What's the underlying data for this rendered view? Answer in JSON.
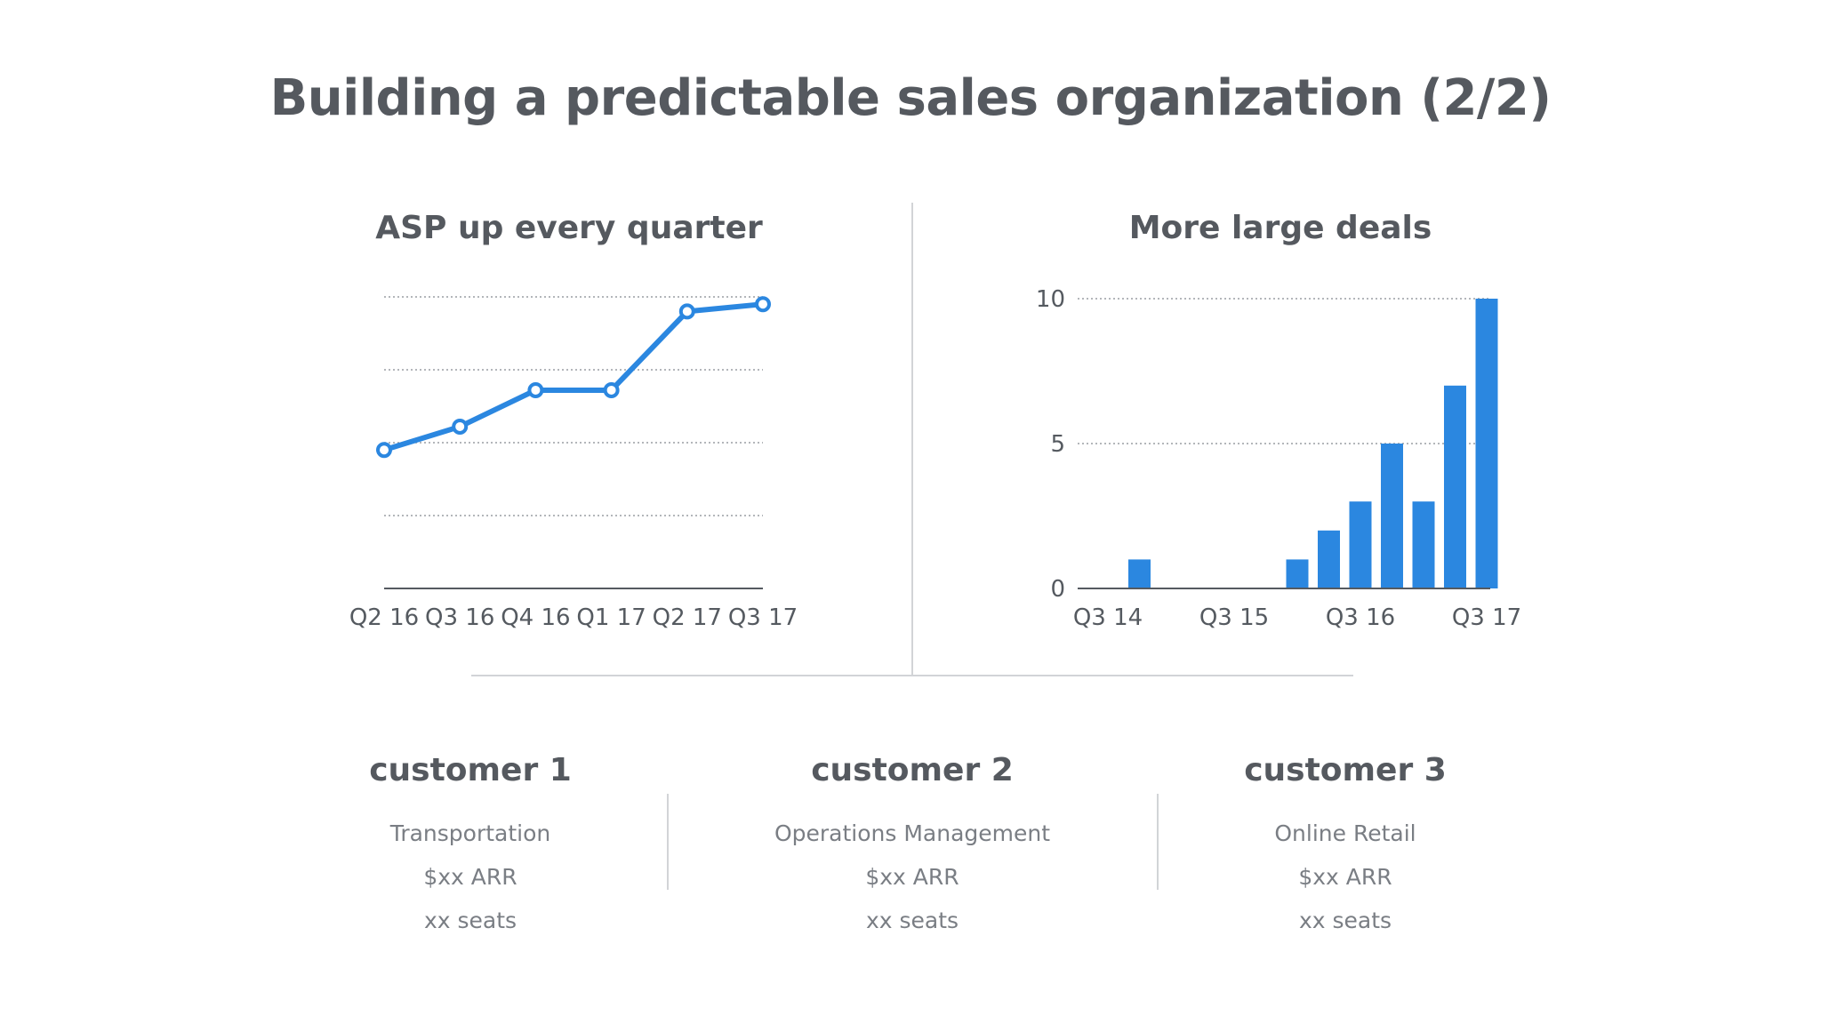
{
  "slide": {
    "title": "Building a predictable sales organization (2/2)"
  },
  "colors": {
    "accent": "#2b87e0",
    "grid": "#9a9ea3",
    "axis": "#555a60",
    "divider": "#d2d4d7"
  },
  "chart_data": [
    {
      "type": "line",
      "title": "ASP up every quarter",
      "xlabel": "",
      "ylabel": "",
      "categories": [
        "Q2 16",
        "Q3 16",
        "Q4 16",
        "Q1 17",
        "Q2 17",
        "Q3 17"
      ],
      "values": [
        1.9,
        2.22,
        2.72,
        2.72,
        3.8,
        3.9
      ],
      "ylim": [
        0,
        4
      ],
      "grid": true,
      "y_tick_labels": false,
      "markers": "hollow-circle"
    },
    {
      "type": "bar",
      "title": "More large deals",
      "xlabel": "",
      "ylabel": "",
      "categories": [
        "Q3 14",
        "Q4 14",
        "Q1 15",
        "Q2 15",
        "Q3 15",
        "Q4 15",
        "Q1 16",
        "Q2 16",
        "Q3 16",
        "Q4 16",
        "Q1 17",
        "Q2 17",
        "Q3 17"
      ],
      "values": [
        0,
        1,
        0,
        0,
        0,
        0,
        1,
        2,
        3,
        5,
        3,
        7,
        10
      ],
      "x_tick_labels": [
        "Q3 14",
        "Q3 15",
        "Q3 16",
        "Q3 17"
      ],
      "y_ticks": [
        0,
        5,
        10
      ],
      "ylim": [
        0,
        10
      ],
      "grid": true
    }
  ],
  "customers": [
    {
      "name": "customer 1",
      "industry": "Transportation",
      "arr": "$xx ARR",
      "seats": "xx seats"
    },
    {
      "name": "customer 2",
      "industry": "Operations Management",
      "arr": "$xx ARR",
      "seats": "xx seats"
    },
    {
      "name": "customer 3",
      "industry": "Online Retail",
      "arr": "$xx ARR",
      "seats": "xx seats"
    }
  ]
}
